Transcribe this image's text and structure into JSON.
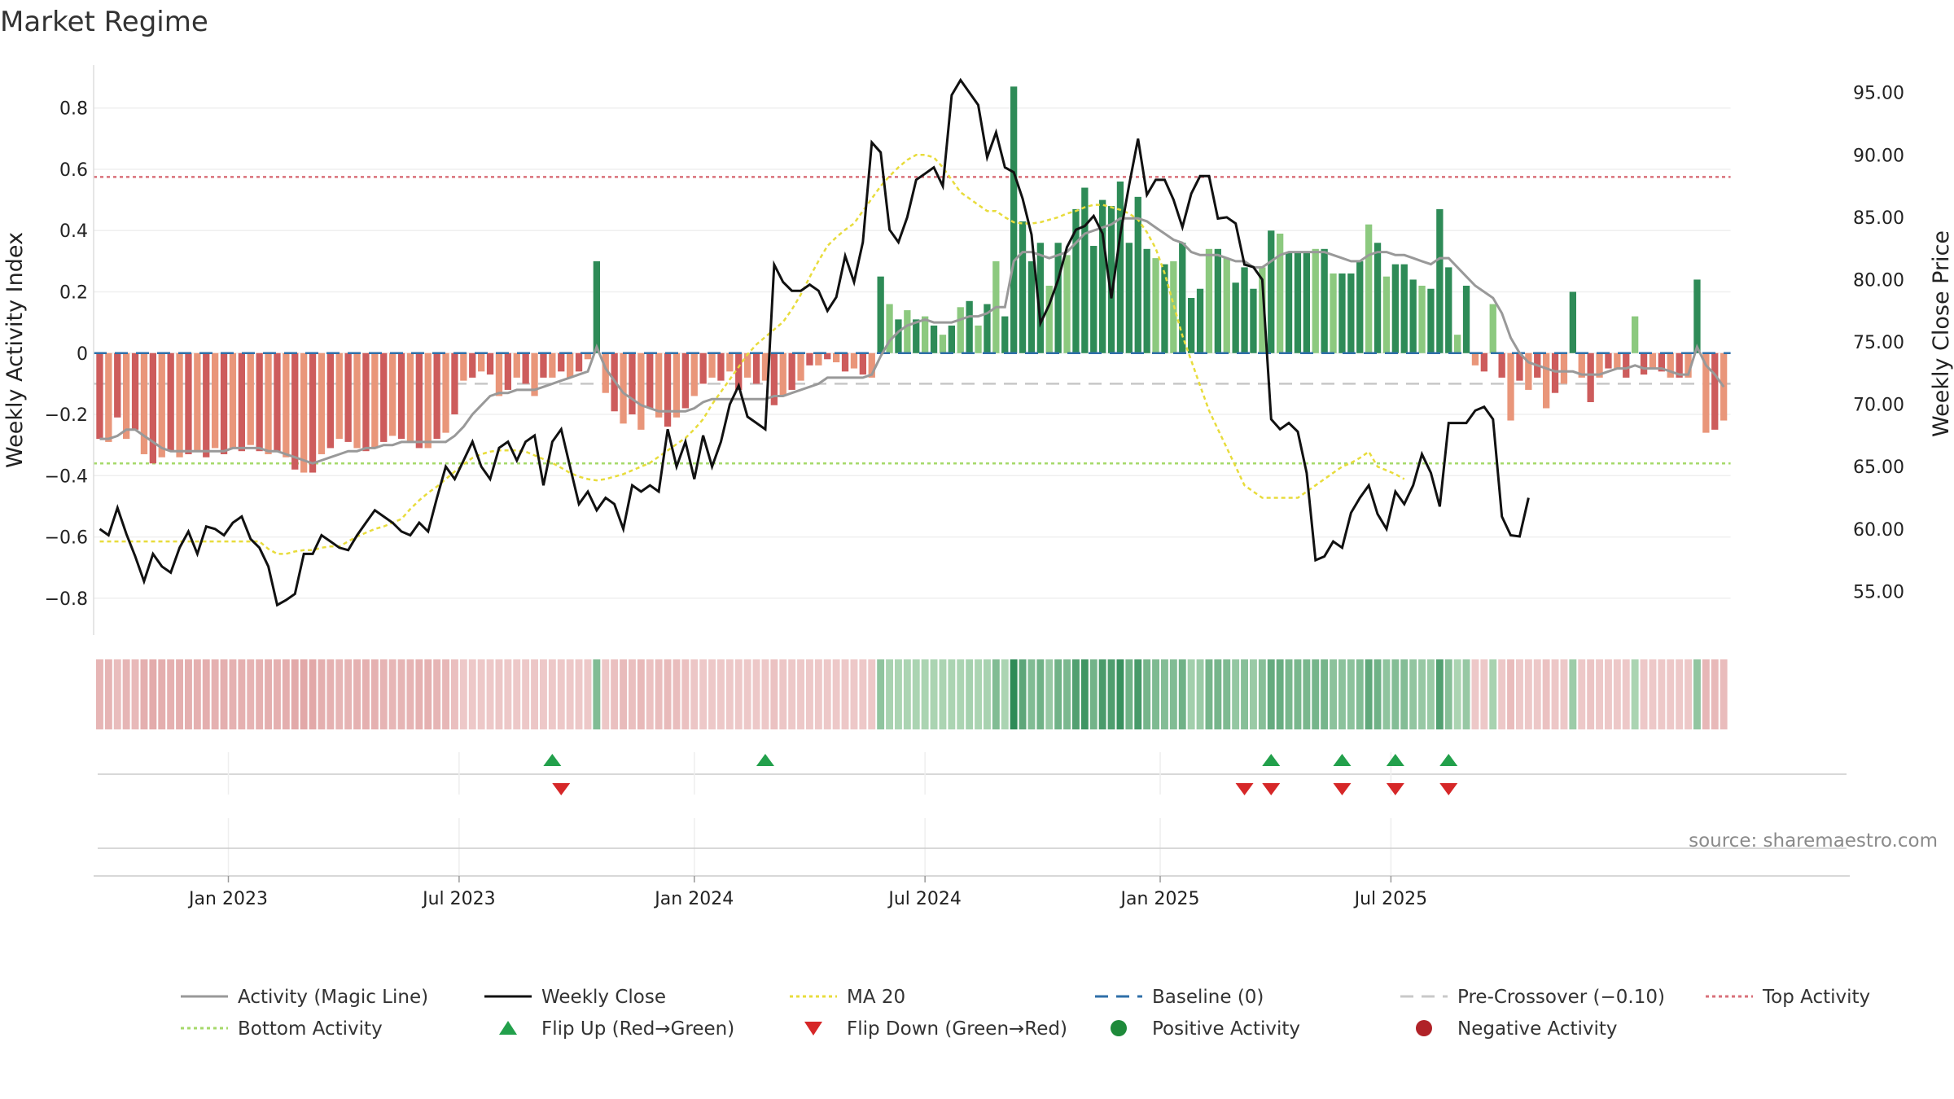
{
  "chart_data": {
    "type": "bar",
    "title": "Market Regime",
    "source_note": "source: sharemaestro.com",
    "ylabel_left": "Weekly Activity Index",
    "ylabel_right": "Weekly Close Price",
    "left_ylim": [
      -0.92,
      0.94
    ],
    "right_ylim": [
      51.5,
      97.2
    ],
    "left_ticks": [
      "0.8",
      "0.6",
      "0.4",
      "0.2",
      "0",
      "−0.2",
      "−0.4",
      "−0.6",
      "−0.8"
    ],
    "left_tick_values": [
      0.8,
      0.6,
      0.4,
      0.2,
      0,
      -0.2,
      -0.4,
      -0.6,
      -0.8
    ],
    "right_ticks": [
      "95.00",
      "90.00",
      "85.00",
      "80.00",
      "75.00",
      "70.00",
      "65.00",
      "60.00",
      "55.00"
    ],
    "right_tick_values": [
      95,
      90,
      85,
      80,
      75,
      70,
      65,
      60,
      55
    ],
    "x_ticks": [
      "Jan 2023",
      "Jul 2023",
      "Jan 2024",
      "Jul 2024",
      "Jan 2025",
      "Jul 2025"
    ],
    "x_tick_weeks": [
      15,
      41,
      67.5,
      93.5,
      120,
      146
    ],
    "reference_lines": {
      "top_activity": 0.575,
      "bottom_activity": -0.36,
      "pre_crossover": -0.1,
      "baseline": 0
    },
    "activity": [
      -0.28,
      -0.29,
      -0.21,
      -0.28,
      -0.25,
      -0.33,
      -0.36,
      -0.34,
      -0.32,
      -0.34,
      -0.33,
      -0.32,
      -0.34,
      -0.31,
      -0.33,
      -0.31,
      -0.32,
      -0.3,
      -0.32,
      -0.33,
      -0.32,
      -0.34,
      -0.38,
      -0.39,
      -0.39,
      -0.33,
      -0.31,
      -0.28,
      -0.29,
      -0.31,
      -0.32,
      -0.31,
      -0.29,
      -0.27,
      -0.28,
      -0.29,
      -0.31,
      -0.31,
      -0.28,
      -0.26,
      -0.2,
      -0.09,
      -0.08,
      -0.06,
      -0.07,
      -0.14,
      -0.12,
      -0.08,
      -0.1,
      -0.14,
      -0.08,
      -0.08,
      -0.06,
      -0.08,
      -0.06,
      -0.02,
      0.3,
      -0.13,
      -0.19,
      -0.23,
      -0.2,
      -0.25,
      -0.18,
      -0.21,
      -0.24,
      -0.21,
      -0.18,
      -0.14,
      -0.1,
      -0.08,
      -0.09,
      -0.06,
      -0.12,
      -0.08,
      -0.1,
      -0.09,
      -0.17,
      -0.14,
      -0.12,
      -0.09,
      -0.04,
      -0.04,
      -0.02,
      -0.03,
      -0.06,
      -0.05,
      -0.07,
      -0.08,
      0.25,
      0.16,
      0.11,
      0.14,
      0.11,
      0.12,
      0.09,
      0.06,
      0.09,
      0.15,
      0.17,
      0.09,
      0.16,
      0.3,
      0.12,
      0.87,
      0.43,
      0.3,
      0.36,
      0.22,
      0.36,
      0.32,
      0.47,
      0.54,
      0.35,
      0.5,
      0.48,
      0.56,
      0.36,
      0.51,
      0.34,
      0.31,
      0.29,
      0.3,
      0.36,
      0.18,
      0.21,
      0.34,
      0.34,
      0.31,
      0.23,
      0.28,
      0.21,
      0.28,
      0.4,
      0.39,
      0.33,
      0.33,
      0.33,
      0.34,
      0.34,
      0.26,
      0.26,
      0.26,
      0.3,
      0.42,
      0.36,
      0.25,
      0.29,
      0.29,
      0.24,
      0.22,
      0.21,
      0.47,
      0.28,
      0.06,
      0.22,
      -0.04,
      -0.06,
      0.16,
      -0.08,
      -0.22,
      -0.09,
      -0.12,
      -0.08,
      -0.18,
      -0.13,
      -0.1,
      0.2,
      -0.08,
      -0.16,
      -0.08,
      -0.05,
      -0.05,
      -0.08,
      0.12,
      -0.07,
      -0.05,
      -0.06,
      -0.08,
      -0.08,
      -0.08,
      0.24,
      -0.26,
      -0.25,
      -0.22
    ],
    "magic_line": [
      -0.28,
      -0.28,
      -0.27,
      -0.25,
      -0.25,
      -0.27,
      -0.29,
      -0.31,
      -0.32,
      -0.32,
      -0.32,
      -0.32,
      -0.32,
      -0.32,
      -0.32,
      -0.31,
      -0.31,
      -0.31,
      -0.31,
      -0.32,
      -0.32,
      -0.33,
      -0.34,
      -0.35,
      -0.36,
      -0.35,
      -0.34,
      -0.33,
      -0.32,
      -0.32,
      -0.31,
      -0.31,
      -0.3,
      -0.3,
      -0.29,
      -0.29,
      -0.29,
      -0.29,
      -0.29,
      -0.29,
      -0.27,
      -0.24,
      -0.2,
      -0.17,
      -0.14,
      -0.13,
      -0.13,
      -0.12,
      -0.12,
      -0.12,
      -0.11,
      -0.1,
      -0.09,
      -0.08,
      -0.07,
      -0.06,
      0.02,
      -0.05,
      -0.09,
      -0.13,
      -0.15,
      -0.17,
      -0.18,
      -0.19,
      -0.19,
      -0.19,
      -0.19,
      -0.18,
      -0.16,
      -0.15,
      -0.15,
      -0.15,
      -0.15,
      -0.15,
      -0.15,
      -0.15,
      -0.14,
      -0.14,
      -0.13,
      -0.12,
      -0.11,
      -0.1,
      -0.08,
      -0.08,
      -0.08,
      -0.08,
      -0.08,
      -0.07,
      -0.01,
      0.04,
      0.07,
      0.09,
      0.1,
      0.11,
      0.1,
      0.1,
      0.1,
      0.11,
      0.12,
      0.12,
      0.13,
      0.15,
      0.15,
      0.3,
      0.33,
      0.33,
      0.32,
      0.31,
      0.32,
      0.33,
      0.36,
      0.39,
      0.4,
      0.41,
      0.42,
      0.44,
      0.44,
      0.44,
      0.43,
      0.41,
      0.39,
      0.37,
      0.36,
      0.33,
      0.32,
      0.32,
      0.32,
      0.31,
      0.3,
      0.3,
      0.28,
      0.28,
      0.3,
      0.32,
      0.33,
      0.33,
      0.33,
      0.33,
      0.33,
      0.32,
      0.31,
      0.3,
      0.3,
      0.32,
      0.33,
      0.33,
      0.32,
      0.32,
      0.31,
      0.3,
      0.29,
      0.31,
      0.31,
      0.28,
      0.25,
      0.22,
      0.2,
      0.18,
      0.13,
      0.05,
      0.0,
      -0.03,
      -0.04,
      -0.05,
      -0.06,
      -0.06,
      -0.06,
      -0.07,
      -0.07,
      -0.07,
      -0.06,
      -0.05,
      -0.05,
      -0.04,
      -0.05,
      -0.05,
      -0.05,
      -0.06,
      -0.07,
      -0.07,
      0.02,
      -0.04,
      -0.07,
      -0.11
    ],
    "close": [
      60.0,
      59.5,
      61.7,
      59.6,
      57.8,
      55.8,
      58.0,
      57.0,
      56.5,
      58.5,
      59.8,
      58.0,
      60.2,
      60.0,
      59.5,
      60.5,
      61.0,
      59.2,
      58.5,
      57.0,
      53.9,
      54.3,
      54.8,
      58.0,
      58.0,
      59.5,
      59.0,
      58.5,
      58.3,
      59.5,
      60.5,
      61.5,
      61.0,
      60.5,
      59.8,
      59.5,
      60.5,
      59.8,
      62.5,
      65.0,
      64.0,
      65.5,
      67.0,
      65.0,
      64.0,
      66.5,
      67.0,
      65.5,
      67.0,
      67.5,
      63.5,
      67.0,
      68.0,
      65.0,
      62.0,
      63.0,
      61.5,
      62.5,
      62.0,
      60.0,
      63.5,
      63.0,
      63.5,
      63.0,
      68.0,
      65.0,
      67.0,
      64.0,
      67.5,
      65.0,
      67.0,
      70.0,
      71.5,
      69.0,
      68.5,
      68.0,
      81.2,
      79.8,
      79.1,
      79.1,
      79.6,
      79.1,
      77.5,
      78.6,
      81.9,
      79.8,
      83.0,
      91.0,
      90.2,
      84.0,
      83.0,
      85.0,
      88.0,
      88.5,
      89.0,
      87.5,
      94.8,
      96.0,
      95.0,
      94.0,
      89.8,
      91.8,
      89.0,
      88.6,
      86.5,
      83.6,
      76.5,
      78.0,
      80.0,
      82.6,
      84.0,
      84.3,
      85.1,
      83.7,
      78.5,
      83.6,
      87.6,
      91.3,
      86.8,
      88.0,
      88.0,
      86.4,
      84.2,
      86.9,
      88.3,
      88.3,
      84.9,
      85.0,
      84.5,
      81.2,
      81.0,
      80.0,
      68.8,
      68.0,
      68.5,
      67.8,
      64.5,
      57.5,
      57.8,
      59.0,
      58.5,
      61.3,
      62.5,
      63.5,
      61.2,
      60.0,
      63.0,
      62.0,
      63.5,
      66.0,
      64.5,
      61.8,
      68.5,
      68.5,
      68.5,
      69.5,
      69.8,
      68.8,
      61.0,
      59.5,
      59.4,
      62.5
    ],
    "ma20": [
      59.0,
      59.0,
      59.0,
      59.0,
      59.0,
      59.0,
      59.0,
      59.0,
      59.0,
      59.0,
      59.0,
      59.0,
      59.0,
      59.0,
      59.0,
      59.0,
      59.0,
      59.0,
      59.0,
      58.4,
      58.0,
      58.0,
      58.2,
      58.3,
      58.3,
      58.5,
      58.6,
      58.6,
      59.0,
      59.4,
      59.7,
      60.0,
      60.2,
      60.5,
      60.8,
      61.6,
      62.3,
      62.9,
      63.4,
      64.0,
      64.6,
      65.2,
      65.7,
      66.0,
      66.2,
      66.3,
      66.3,
      66.3,
      66.2,
      65.9,
      65.6,
      65.3,
      64.9,
      64.5,
      64.2,
      64.0,
      63.9,
      64.0,
      64.2,
      64.4,
      64.7,
      65.0,
      65.3,
      65.8,
      66.3,
      66.8,
      67.3,
      68.0,
      68.8,
      70.0,
      71.0,
      72.0,
      73.0,
      74.0,
      74.8,
      75.4,
      76.0,
      76.6,
      77.6,
      78.8,
      80.2,
      81.5,
      82.7,
      83.4,
      84.0,
      84.5,
      85.5,
      86.5,
      87.5,
      88.3,
      89.0,
      89.6,
      90.0,
      90.0,
      89.8,
      89.0,
      88.0,
      87.0,
      86.5,
      86.0,
      85.5,
      85.5,
      85.0,
      84.6,
      84.5,
      84.5,
      84.6,
      84.8,
      85.0,
      85.3,
      85.5,
      85.8,
      86.0,
      86.0,
      85.8,
      85.6,
      85.3,
      84.8,
      83.8,
      82.5,
      80.5,
      78.0,
      75.5,
      73.5,
      71.5,
      69.5,
      68.0,
      66.5,
      65.0,
      63.5,
      63.0,
      62.5,
      62.5,
      62.5,
      62.5,
      62.5,
      63.0,
      63.5,
      64.0,
      64.5,
      65.0,
      65.3,
      65.7,
      66.2,
      65.0,
      64.7,
      64.4,
      64.0
    ],
    "flip_up_weeks": [
      51,
      75,
      132,
      140,
      146,
      152
    ],
    "flip_down_weeks": [
      52,
      129,
      132,
      140,
      146,
      152
    ],
    "regime_strip_note": "one cell per week: green = positive activity, red = negative activity, shade by magnitude",
    "legend": [
      {
        "label": "Activity (Magic Line)",
        "kind": "line",
        "color": "#999999",
        "dash": "solid"
      },
      {
        "label": "Weekly Close",
        "kind": "line",
        "color": "#111111",
        "dash": "solid"
      },
      {
        "label": "MA 20",
        "kind": "line",
        "color": "#e8dc3c",
        "dash": "dotted"
      },
      {
        "label": "Baseline (0)",
        "kind": "line",
        "color": "#2f6fa8",
        "dash": "dashed"
      },
      {
        "label": "Pre-Crossover (−0.10)",
        "kind": "line",
        "color": "#c8c8c8",
        "dash": "dashed"
      },
      {
        "label": "Top Activity",
        "kind": "line",
        "color": "#d9707a",
        "dash": "dotted"
      },
      {
        "label": "Bottom Activity",
        "kind": "line",
        "color": "#a6d96a",
        "dash": "dotted"
      },
      {
        "label": "Flip Up (Red→Green)",
        "kind": "triangle-up",
        "color": "#22a04b"
      },
      {
        "label": "Flip Down (Green→Red)",
        "kind": "triangle-down",
        "color": "#d62728"
      },
      {
        "label": "Positive Activity",
        "kind": "dot",
        "color": "#1e8a3a"
      },
      {
        "label": "Negative Activity",
        "kind": "dot",
        "color": "#b02228"
      }
    ],
    "colors": {
      "pos_strong": "#2e8b57",
      "pos_weak": "#8cc97f",
      "neg_strong": "#cd5c5c",
      "neg_weak": "#e9967a",
      "top_line": "#d9707a",
      "bottom_line": "#a6d96a",
      "baseline": "#2f6fa8",
      "pre_crossover": "#c8c8c8",
      "close": "#111111",
      "magic": "#999999",
      "ma20": "#e8dc3c"
    }
  }
}
